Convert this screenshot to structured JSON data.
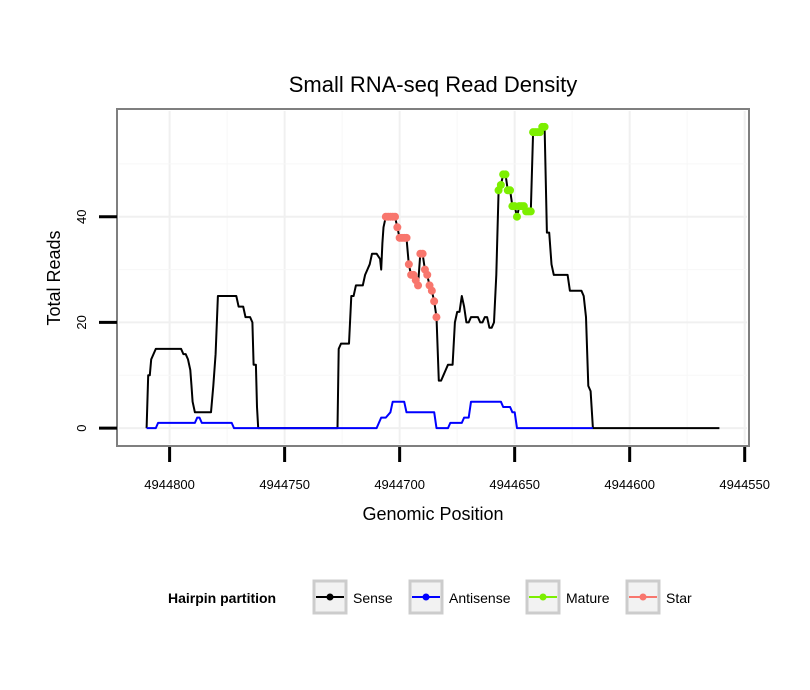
{
  "chart_data": {
    "type": "line",
    "title": "Small RNA-seq Read Density",
    "xlabel": "Genomic Position",
    "ylabel": "Total Reads",
    "xlim": [
      4944822,
      4944549
    ],
    "ylim": [
      -3,
      60
    ],
    "x_ticks": [
      4944800,
      4944750,
      4944700,
      4944650,
      4944600,
      4944550
    ],
    "y_ticks": [
      0,
      20,
      40
    ],
    "legend": {
      "title": "Hairpin partition",
      "position": "bottom",
      "entries": [
        {
          "label": "Sense",
          "color": "#000000"
        },
        {
          "label": "Antisense",
          "color": "#0000ff"
        },
        {
          "label": "Mature",
          "color": "#7cef00"
        },
        {
          "label": "Star",
          "color": "#f8766d"
        }
      ]
    },
    "series": [
      {
        "name": "Sense",
        "color": "#000000",
        "points": [
          [
            4944810,
            0
          ],
          [
            4944809.3,
            10
          ],
          [
            4944808.6,
            10
          ],
          [
            4944808,
            13
          ],
          [
            4944807,
            14
          ],
          [
            4944806,
            15
          ],
          [
            4944795,
            15
          ],
          [
            4944794,
            14
          ],
          [
            4944793,
            14
          ],
          [
            4944792,
            13
          ],
          [
            4944791,
            11
          ],
          [
            4944790.5,
            8
          ],
          [
            4944790,
            5
          ],
          [
            4944789,
            3
          ],
          [
            4944782,
            3
          ],
          [
            4944781,
            8
          ],
          [
            4944780,
            14
          ],
          [
            4944779,
            25
          ],
          [
            4944771,
            25
          ],
          [
            4944770,
            23
          ],
          [
            4944768,
            23
          ],
          [
            4944767,
            21
          ],
          [
            4944765,
            21
          ],
          [
            4944764,
            20
          ],
          [
            4944763.5,
            12
          ],
          [
            4944762.5,
            12
          ],
          [
            4944762,
            4
          ],
          [
            4944761.5,
            0
          ],
          [
            4944727,
            0
          ],
          [
            4944726.5,
            15
          ],
          [
            4944725.5,
            16
          ],
          [
            4944722,
            16
          ],
          [
            4944721,
            25
          ],
          [
            4944720,
            25
          ],
          [
            4944719,
            27
          ],
          [
            4944716,
            27
          ],
          [
            4944715,
            29
          ],
          [
            4944714,
            30
          ],
          [
            4944713,
            31
          ],
          [
            4944712,
            33
          ],
          [
            4944710,
            33
          ],
          [
            4944708.5,
            32
          ],
          [
            4944708,
            30
          ],
          [
            4944707.5,
            35
          ],
          [
            4944707,
            38
          ],
          [
            4944706,
            40
          ],
          [
            4944705,
            40
          ],
          [
            4944704,
            40
          ],
          [
            4944703,
            40
          ],
          [
            4944702,
            40
          ],
          [
            4944701,
            38
          ],
          [
            4944700,
            36
          ],
          [
            4944699,
            36
          ],
          [
            4944698,
            36
          ],
          [
            4944697,
            36
          ],
          [
            4944696,
            31
          ],
          [
            4944695,
            29
          ],
          [
            4944694,
            29
          ],
          [
            4944693,
            28
          ],
          [
            4944692,
            27
          ],
          [
            4944691,
            33
          ],
          [
            4944690,
            33
          ],
          [
            4944689,
            30
          ],
          [
            4944688,
            29
          ],
          [
            4944687,
            27
          ],
          [
            4944686,
            26
          ],
          [
            4944685,
            24
          ],
          [
            4944684,
            21
          ],
          [
            4944683,
            9
          ],
          [
            4944682,
            9
          ],
          [
            4944681,
            10
          ],
          [
            4944680,
            11
          ],
          [
            4944679,
            12
          ],
          [
            4944677,
            12
          ],
          [
            4944676,
            20
          ],
          [
            4944675,
            22
          ],
          [
            4944674,
            22
          ],
          [
            4944673,
            25
          ],
          [
            4944672,
            23
          ],
          [
            4944671,
            20
          ],
          [
            4944670,
            20
          ],
          [
            4944669,
            21
          ],
          [
            4944668,
            21
          ],
          [
            4944667,
            21
          ],
          [
            4944666,
            21
          ],
          [
            4944665,
            20
          ],
          [
            4944664,
            20
          ],
          [
            4944663,
            21
          ],
          [
            4944662,
            21
          ],
          [
            4944661,
            19
          ],
          [
            4944660,
            19
          ],
          [
            4944659,
            20
          ],
          [
            4944658,
            29
          ],
          [
            4944657,
            45
          ],
          [
            4944656,
            46
          ],
          [
            4944655,
            48
          ],
          [
            4944654,
            48
          ],
          [
            4944653,
            45
          ],
          [
            4944652,
            45
          ],
          [
            4944651,
            42
          ],
          [
            4944650,
            42
          ],
          [
            4944649,
            40
          ],
          [
            4944648,
            42
          ],
          [
            4944647,
            42
          ],
          [
            4944646,
            42
          ],
          [
            4944645,
            41
          ],
          [
            4944644,
            41
          ],
          [
            4944643,
            41
          ],
          [
            4944642,
            56
          ],
          [
            4944641,
            56
          ],
          [
            4944640,
            56
          ],
          [
            4944639,
            56
          ],
          [
            4944638,
            57
          ],
          [
            4944637,
            57
          ],
          [
            4944636,
            37
          ],
          [
            4944635,
            37
          ],
          [
            4944634,
            31
          ],
          [
            4944633,
            29
          ],
          [
            4944627,
            29
          ],
          [
            4944626,
            26
          ],
          [
            4944621,
            26
          ],
          [
            4944620,
            25
          ],
          [
            4944619,
            21
          ],
          [
            4944618,
            8
          ],
          [
            4944617,
            7
          ],
          [
            4944616,
            0
          ],
          [
            4944561,
            0
          ]
        ]
      },
      {
        "name": "Antisense",
        "color": "#0000ff",
        "points": [
          [
            4944810,
            0
          ],
          [
            4944806,
            0
          ],
          [
            4944805,
            1
          ],
          [
            4944789,
            1
          ],
          [
            4944788,
            2
          ],
          [
            4944787,
            2
          ],
          [
            4944786,
            1
          ],
          [
            4944773,
            1
          ],
          [
            4944772,
            0
          ],
          [
            4944710,
            0
          ],
          [
            4944708,
            2
          ],
          [
            4944706,
            2
          ],
          [
            4944704,
            3
          ],
          [
            4944703,
            5
          ],
          [
            4944698,
            5
          ],
          [
            4944697,
            3
          ],
          [
            4944685,
            3
          ],
          [
            4944684,
            0
          ],
          [
            4944679,
            0
          ],
          [
            4944678,
            1
          ],
          [
            4944673,
            1
          ],
          [
            4944672,
            2
          ],
          [
            4944670,
            2
          ],
          [
            4944669,
            5
          ],
          [
            4944656,
            5
          ],
          [
            4944655,
            4
          ],
          [
            4944652,
            4
          ],
          [
            4944651,
            3
          ],
          [
            4944650,
            3
          ],
          [
            4944649,
            0
          ],
          [
            4944616,
            0
          ]
        ]
      },
      {
        "name": "Mature",
        "color": "#7cef00",
        "points": [
          [
            4944657,
            45
          ],
          [
            4944656,
            46
          ],
          [
            4944655,
            48
          ],
          [
            4944654,
            48
          ],
          [
            4944653,
            45
          ],
          [
            4944652,
            45
          ],
          [
            4944651,
            42
          ],
          [
            4944650,
            42
          ],
          [
            4944649,
            40
          ],
          [
            4944648,
            42
          ],
          [
            4944647,
            42
          ],
          [
            4944646,
            42
          ],
          [
            4944645,
            41
          ],
          [
            4944644,
            41
          ],
          [
            4944643,
            41
          ],
          [
            4944642,
            56
          ],
          [
            4944641,
            56
          ],
          [
            4944640,
            56
          ],
          [
            4944639,
            56
          ],
          [
            4944638,
            57
          ],
          [
            4944637,
            57
          ]
        ]
      },
      {
        "name": "Star",
        "color": "#f8766d",
        "points": [
          [
            4944706,
            40
          ],
          [
            4944705,
            40
          ],
          [
            4944704,
            40
          ],
          [
            4944703,
            40
          ],
          [
            4944702,
            40
          ],
          [
            4944701,
            38
          ],
          [
            4944700,
            36
          ],
          [
            4944699,
            36
          ],
          [
            4944698,
            36
          ],
          [
            4944697,
            36
          ],
          [
            4944696,
            31
          ],
          [
            4944695,
            29
          ],
          [
            4944694,
            29
          ],
          [
            4944693,
            28
          ],
          [
            4944692,
            27
          ],
          [
            4944691,
            33
          ],
          [
            4944690,
            33
          ],
          [
            4944689,
            30
          ],
          [
            4944688,
            29
          ],
          [
            4944687,
            27
          ],
          [
            4944686,
            26
          ],
          [
            4944685,
            24
          ],
          [
            4944684,
            21
          ]
        ]
      }
    ]
  }
}
